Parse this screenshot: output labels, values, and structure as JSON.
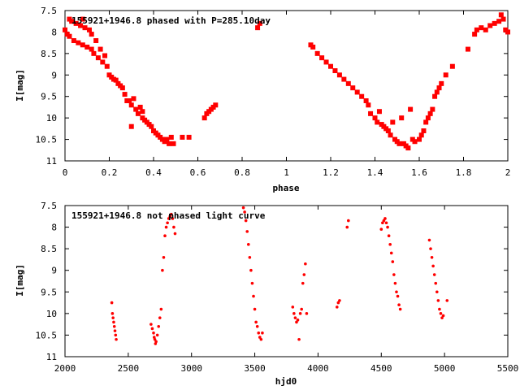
{
  "chart_data": [
    {
      "type": "scatter",
      "title": "155921+1946.8 phased with P=285.10day",
      "xlabel": "phase",
      "ylabel": "I[mag]",
      "xlim": [
        0,
        2
      ],
      "ylim": [
        7.5,
        11
      ],
      "y_inverted": true,
      "xticks": [
        "0",
        "0.2",
        "0.4",
        "0.6",
        "0.8",
        "1",
        "1.2",
        "1.4",
        "1.6",
        "1.8",
        "2"
      ],
      "yticks": [
        "7.5",
        "8",
        "8.5",
        "9",
        "9.5",
        "10",
        "10.5",
        "11"
      ],
      "marker": "filled-square",
      "color": "#ff0000",
      "points": [
        [
          0.0,
          7.95
        ],
        [
          0.01,
          8.05
        ],
        [
          0.02,
          8.1
        ],
        [
          0.02,
          7.7
        ],
        [
          0.03,
          7.75
        ],
        [
          0.04,
          8.2
        ],
        [
          0.05,
          7.8
        ],
        [
          0.06,
          8.25
        ],
        [
          0.07,
          7.85
        ],
        [
          0.08,
          8.3
        ],
        [
          0.08,
          7.7
        ],
        [
          0.09,
          7.9
        ],
        [
          0.1,
          8.35
        ],
        [
          0.11,
          7.95
        ],
        [
          0.12,
          8.4
        ],
        [
          0.12,
          8.05
        ],
        [
          0.13,
          8.5
        ],
        [
          0.14,
          8.2
        ],
        [
          0.15,
          8.6
        ],
        [
          0.16,
          8.4
        ],
        [
          0.17,
          8.7
        ],
        [
          0.18,
          8.55
        ],
        [
          0.19,
          8.8
        ],
        [
          0.2,
          9.0
        ],
        [
          0.21,
          9.05
        ],
        [
          0.22,
          9.1
        ],
        [
          0.23,
          9.12
        ],
        [
          0.24,
          9.2
        ],
        [
          0.25,
          9.25
        ],
        [
          0.26,
          9.3
        ],
        [
          0.27,
          9.45
        ],
        [
          0.28,
          9.6
        ],
        [
          0.29,
          9.6
        ],
        [
          0.3,
          9.7
        ],
        [
          0.3,
          10.2
        ],
        [
          0.31,
          9.55
        ],
        [
          0.32,
          9.8
        ],
        [
          0.33,
          9.9
        ],
        [
          0.34,
          9.75
        ],
        [
          0.35,
          10.0
        ],
        [
          0.35,
          9.85
        ],
        [
          0.36,
          10.05
        ],
        [
          0.37,
          10.1
        ],
        [
          0.38,
          10.15
        ],
        [
          0.39,
          10.2
        ],
        [
          0.4,
          10.3
        ],
        [
          0.41,
          10.35
        ],
        [
          0.42,
          10.4
        ],
        [
          0.43,
          10.45
        ],
        [
          0.44,
          10.5
        ],
        [
          0.45,
          10.55
        ],
        [
          0.46,
          10.5
        ],
        [
          0.47,
          10.6
        ],
        [
          0.48,
          10.45
        ],
        [
          0.49,
          10.6
        ],
        [
          0.53,
          10.45
        ],
        [
          0.56,
          10.45
        ],
        [
          0.63,
          10.0
        ],
        [
          0.64,
          9.9
        ],
        [
          0.65,
          9.85
        ],
        [
          0.66,
          9.8
        ],
        [
          0.67,
          9.75
        ],
        [
          0.68,
          9.7
        ],
        [
          0.87,
          7.9
        ],
        [
          0.88,
          7.8
        ],
        [
          1.11,
          8.3
        ],
        [
          1.12,
          8.35
        ],
        [
          1.14,
          8.5
        ],
        [
          1.16,
          8.6
        ],
        [
          1.18,
          8.7
        ],
        [
          1.2,
          8.8
        ],
        [
          1.22,
          8.9
        ],
        [
          1.24,
          9.0
        ],
        [
          1.26,
          9.1
        ],
        [
          1.28,
          9.2
        ],
        [
          1.3,
          9.3
        ],
        [
          1.32,
          9.4
        ],
        [
          1.34,
          9.5
        ],
        [
          1.36,
          9.6
        ],
        [
          1.37,
          9.7
        ],
        [
          1.38,
          9.9
        ],
        [
          1.4,
          10.0
        ],
        [
          1.41,
          10.1
        ],
        [
          1.42,
          9.85
        ],
        [
          1.43,
          10.15
        ],
        [
          1.44,
          10.2
        ],
        [
          1.45,
          10.25
        ],
        [
          1.46,
          10.3
        ],
        [
          1.47,
          10.4
        ],
        [
          1.48,
          10.1
        ],
        [
          1.49,
          10.5
        ],
        [
          1.5,
          10.55
        ],
        [
          1.51,
          10.6
        ],
        [
          1.52,
          10.0
        ],
        [
          1.53,
          10.6
        ],
        [
          1.54,
          10.65
        ],
        [
          1.55,
          10.7
        ],
        [
          1.56,
          9.8
        ],
        [
          1.57,
          10.5
        ],
        [
          1.58,
          10.55
        ],
        [
          1.6,
          10.5
        ],
        [
          1.61,
          10.4
        ],
        [
          1.62,
          10.3
        ],
        [
          1.63,
          10.1
        ],
        [
          1.64,
          10.0
        ],
        [
          1.65,
          9.9
        ],
        [
          1.66,
          9.8
        ],
        [
          1.67,
          9.5
        ],
        [
          1.68,
          9.4
        ],
        [
          1.69,
          9.3
        ],
        [
          1.7,
          9.2
        ],
        [
          1.72,
          9.0
        ],
        [
          1.75,
          8.8
        ],
        [
          1.82,
          8.4
        ],
        [
          1.85,
          8.05
        ],
        [
          1.86,
          7.95
        ],
        [
          1.88,
          7.9
        ],
        [
          1.9,
          7.95
        ],
        [
          1.92,
          7.85
        ],
        [
          1.94,
          7.8
        ],
        [
          1.96,
          7.75
        ],
        [
          1.97,
          7.6
        ],
        [
          1.98,
          7.7
        ],
        [
          1.99,
          7.95
        ],
        [
          2.0,
          8.0
        ]
      ]
    },
    {
      "type": "scatter",
      "title": "155921+1946.8 not phased light curve",
      "xlabel": "hjd0",
      "ylabel": "I[mag]",
      "xlim": [
        2000,
        5500
      ],
      "ylim": [
        7.5,
        11
      ],
      "y_inverted": true,
      "xticks": [
        "2000",
        "2500",
        "3000",
        "3500",
        "4000",
        "4500",
        "5000",
        "5500"
      ],
      "yticks": [
        "7.5",
        "8",
        "8.5",
        "9",
        "9.5",
        "10",
        "10.5",
        "11"
      ],
      "marker": "small-dot",
      "color": "#ff0000",
      "points": [
        [
          2370,
          9.75
        ],
        [
          2375,
          10.0
        ],
        [
          2380,
          10.1
        ],
        [
          2385,
          10.2
        ],
        [
          2390,
          10.3
        ],
        [
          2395,
          10.4
        ],
        [
          2400,
          10.5
        ],
        [
          2405,
          10.6
        ],
        [
          2680,
          10.25
        ],
        [
          2690,
          10.35
        ],
        [
          2700,
          10.45
        ],
        [
          2705,
          10.55
        ],
        [
          2710,
          10.6
        ],
        [
          2715,
          10.7
        ],
        [
          2720,
          10.65
        ],
        [
          2730,
          10.5
        ],
        [
          2740,
          10.3
        ],
        [
          2750,
          10.1
        ],
        [
          2760,
          9.9
        ],
        [
          2770,
          9.0
        ],
        [
          2780,
          8.7
        ],
        [
          2790,
          8.2
        ],
        [
          2800,
          8.0
        ],
        [
          2810,
          7.9
        ],
        [
          2820,
          7.8
        ],
        [
          2830,
          7.75
        ],
        [
          2840,
          7.7
        ],
        [
          2850,
          7.8
        ],
        [
          2860,
          8.0
        ],
        [
          2870,
          8.15
        ],
        [
          3410,
          7.55
        ],
        [
          3420,
          7.65
        ],
        [
          3430,
          7.85
        ],
        [
          3440,
          8.1
        ],
        [
          3450,
          8.4
        ],
        [
          3460,
          8.7
        ],
        [
          3470,
          9.0
        ],
        [
          3480,
          9.3
        ],
        [
          3490,
          9.6
        ],
        [
          3500,
          9.9
        ],
        [
          3510,
          10.2
        ],
        [
          3520,
          10.3
        ],
        [
          3530,
          10.45
        ],
        [
          3540,
          10.55
        ],
        [
          3550,
          10.6
        ],
        [
          3560,
          10.45
        ],
        [
          3800,
          9.85
        ],
        [
          3810,
          10.0
        ],
        [
          3820,
          10.1
        ],
        [
          3830,
          10.2
        ],
        [
          3840,
          10.15
        ],
        [
          3850,
          10.6
        ],
        [
          3860,
          10.0
        ],
        [
          3870,
          9.9
        ],
        [
          3880,
          9.3
        ],
        [
          3890,
          9.1
        ],
        [
          3900,
          8.85
        ],
        [
          3910,
          10.0
        ],
        [
          4150,
          9.85
        ],
        [
          4160,
          9.75
        ],
        [
          4170,
          9.7
        ],
        [
          4230,
          8.0
        ],
        [
          4240,
          7.85
        ],
        [
          4500,
          8.05
        ],
        [
          4510,
          7.9
        ],
        [
          4520,
          7.85
        ],
        [
          4530,
          7.8
        ],
        [
          4540,
          7.9
        ],
        [
          4550,
          8.0
        ],
        [
          4560,
          8.2
        ],
        [
          4570,
          8.4
        ],
        [
          4580,
          8.6
        ],
        [
          4590,
          8.8
        ],
        [
          4600,
          9.1
        ],
        [
          4610,
          9.3
        ],
        [
          4620,
          9.5
        ],
        [
          4630,
          9.6
        ],
        [
          4640,
          9.8
        ],
        [
          4650,
          9.9
        ],
        [
          4880,
          8.3
        ],
        [
          4890,
          8.5
        ],
        [
          4900,
          8.7
        ],
        [
          4910,
          8.9
        ],
        [
          4920,
          9.1
        ],
        [
          4930,
          9.3
        ],
        [
          4940,
          9.5
        ],
        [
          4950,
          9.7
        ],
        [
          4960,
          9.9
        ],
        [
          4970,
          10.0
        ],
        [
          4980,
          10.1
        ],
        [
          4990,
          10.05
        ],
        [
          5020,
          9.7
        ]
      ]
    }
  ]
}
